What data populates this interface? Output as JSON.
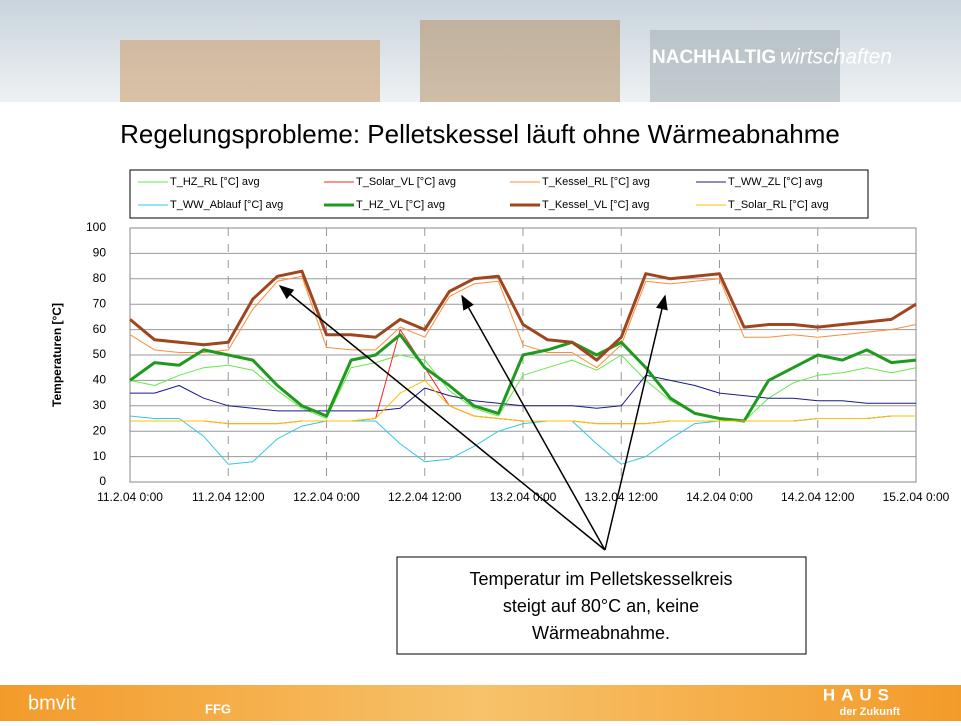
{
  "header": {
    "brand_bold": "NACHHALTIG",
    "brand_italic": "wirtschaften",
    "title": "Regelungsprobleme: Pelletskessel läuft ohne Wärmeabnahme"
  },
  "chart_data": {
    "type": "line",
    "ylabel": "Temperaturen [°C]",
    "x": [
      "11.2.04 0:00",
      "11.2.04 3:00",
      "11.2.04 6:00",
      "11.2.04 9:00",
      "11.2.04 12:00",
      "11.2.04 15:00",
      "11.2.04 18:00",
      "11.2.04 21:00",
      "12.2.04 0:00",
      "12.2.04 3:00",
      "12.2.04 6:00",
      "12.2.04 9:00",
      "12.2.04 12:00",
      "12.2.04 15:00",
      "12.2.04 18:00",
      "12.2.04 21:00",
      "13.2.04 0:00",
      "13.2.04 3:00",
      "13.2.04 6:00",
      "13.2.04 9:00",
      "13.2.04 12:00",
      "13.2.04 15:00",
      "13.2.04 18:00",
      "13.2.04 21:00",
      "14.2.04 0:00",
      "14.2.04 3:00",
      "14.2.04 6:00",
      "14.2.04 9:00",
      "14.2.04 12:00",
      "14.2.04 15:00",
      "14.2.04 18:00",
      "14.2.04 21:00",
      "15.2.04 0:00"
    ],
    "xticks": [
      "11.2.04 0:00",
      "11.2.04 12:00",
      "12.2.04 0:00",
      "12.2.04 12:00",
      "13.2.04 0:00",
      "13.2.04 12:00",
      "14.2.04 0:00",
      "14.2.04 12:00",
      "15.2.04 0:00"
    ],
    "ylim": [
      0,
      100
    ],
    "yticks": [
      0,
      10,
      20,
      30,
      40,
      50,
      60,
      70,
      80,
      90,
      100
    ],
    "grid": true,
    "series": [
      {
        "name": "T_HZ_RL [°C] avg",
        "color": "#66e84a",
        "line_width": 1,
        "values": [
          40,
          38,
          42,
          45,
          46,
          44,
          36,
          29,
          25,
          45,
          47,
          50,
          48,
          36,
          29,
          26,
          42,
          45,
          48,
          44,
          50,
          40,
          32,
          27,
          25,
          24,
          33,
          39,
          42,
          43,
          45,
          43,
          45
        ]
      },
      {
        "name": "T_Solar_VL [°C] avg",
        "color": "#ff2222",
        "line_width": 1,
        "values": [
          24,
          24,
          24,
          24,
          23,
          23,
          23,
          24,
          24,
          24,
          25,
          60,
          45,
          30,
          26,
          25,
          24,
          24,
          24,
          23,
          23,
          23,
          24,
          24,
          24,
          24,
          24,
          24,
          25,
          25,
          25,
          26,
          26
        ]
      },
      {
        "name": "T_Kessel_RL [°C] avg",
        "color": "#ff8c3c",
        "line_width": 1,
        "values": [
          58,
          52,
          51,
          51,
          52,
          68,
          79,
          81,
          53,
          52,
          52,
          61,
          57,
          73,
          78,
          79,
          54,
          51,
          51,
          45,
          54,
          79,
          78,
          79,
          80,
          57,
          57,
          58,
          57,
          58,
          59,
          60,
          62
        ]
      },
      {
        "name": "T_WW_ZL [°C] avg",
        "color": "#1a1a8c",
        "line_width": 1,
        "values": [
          35,
          35,
          38,
          33,
          30,
          29,
          28,
          28,
          28,
          28,
          28,
          29,
          37,
          34,
          32,
          31,
          30,
          30,
          30,
          29,
          30,
          42,
          40,
          38,
          35,
          34,
          33,
          33,
          32,
          32,
          31,
          31,
          31
        ]
      },
      {
        "name": "T_WW_Ablauf [°C] avg",
        "color": "#33c8e6",
        "line_width": 1,
        "values": [
          26,
          25,
          25,
          18,
          7,
          8,
          17,
          22,
          24,
          24,
          24,
          15,
          8,
          9,
          14,
          20,
          23,
          24,
          24,
          15,
          7,
          10,
          17,
          23,
          24,
          24,
          24,
          24,
          25,
          25,
          25,
          26,
          26
        ]
      },
      {
        "name": "T_HZ_VL [°C] avg",
        "color": "#1f9a1f",
        "line_width": 3,
        "values": [
          40,
          47,
          46,
          52,
          50,
          48,
          38,
          30,
          26,
          48,
          50,
          58,
          45,
          38,
          30,
          27,
          50,
          52,
          55,
          50,
          55,
          45,
          33,
          27,
          25,
          24,
          40,
          45,
          50,
          48,
          52,
          47,
          48
        ]
      },
      {
        "name": "T_Kessel_VL [°C] avg",
        "color": "#a0461e",
        "line_width": 3,
        "values": [
          64,
          56,
          55,
          54,
          55,
          72,
          81,
          83,
          58,
          58,
          57,
          64,
          60,
          75,
          80,
          81,
          62,
          56,
          55,
          48,
          57,
          82,
          80,
          81,
          82,
          61,
          62,
          62,
          61,
          62,
          63,
          64,
          70
        ]
      },
      {
        "name": "T_Solar_RL [°C] avg",
        "color": "#ffc000",
        "line_width": 1,
        "values": [
          24,
          24,
          24,
          24,
          23,
          23,
          23,
          24,
          24,
          24,
          25,
          35,
          40,
          30,
          26,
          25,
          24,
          24,
          24,
          23,
          23,
          23,
          24,
          24,
          24,
          24,
          24,
          24,
          25,
          25,
          25,
          26,
          26
        ]
      }
    ]
  },
  "callout": {
    "lines": [
      "Temperatur im Pelletskesselkreis",
      "steigt auf 80°C an, keine",
      "Wärmeabnahme."
    ]
  },
  "footer": {
    "logo_left": "bmvit",
    "logo_mid": "FFG",
    "logo_right_top": "HAUS",
    "logo_right_bottom": "der Zukunft"
  }
}
